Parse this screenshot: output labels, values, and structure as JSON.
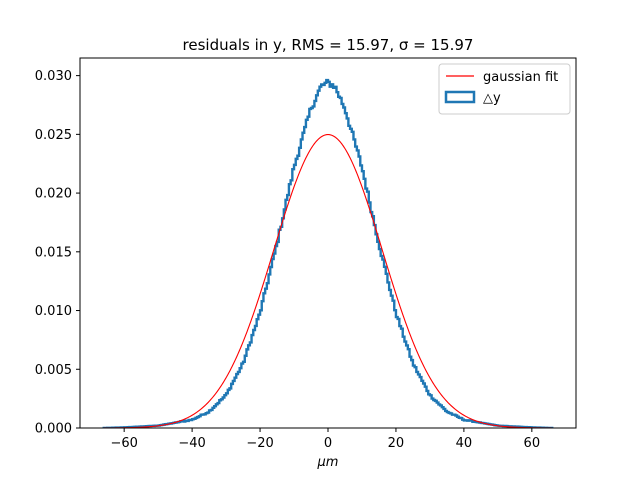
{
  "chart_data": {
    "type": "histogram",
    "title": "residuals in y, RMS = 15.97, σ = 15.97",
    "xlabel": "μm",
    "ylabel": "",
    "xlim": [
      -73,
      73
    ],
    "ylim": [
      0,
      0.0315
    ],
    "xticks": [
      -60,
      -40,
      -20,
      0,
      20,
      40,
      60
    ],
    "xtick_labels": [
      "−60",
      "−40",
      "−20",
      "0",
      "20",
      "40",
      "60"
    ],
    "yticks": [
      0.0,
      0.005,
      0.01,
      0.015,
      0.02,
      0.025,
      0.03
    ],
    "ytick_labels": [
      "0.000",
      "0.005",
      "0.010",
      "0.015",
      "0.020",
      "0.025",
      "0.030"
    ],
    "grid": false,
    "legend_position": "top-right",
    "series": [
      {
        "name": "gaussian fit",
        "kind": "line",
        "color": "#ff0000",
        "mean": 0,
        "sigma": 15.97,
        "x_range": [
          -66,
          66
        ]
      },
      {
        "name": "△y",
        "kind": "step-histogram",
        "color": "#1f77b4",
        "bin_width": 0.5,
        "x_range": [
          -66,
          66
        ],
        "profile": {
          "x": [
            -66,
            -60,
            -50,
            -40,
            -35,
            -30,
            -25,
            -20,
            -15,
            -10,
            -5,
            -2,
            0,
            2,
            5,
            10,
            15,
            20,
            25,
            30,
            35,
            40,
            50,
            60,
            66
          ],
          "y": [
            0.0,
            5e-05,
            0.0002,
            0.0007,
            0.0014,
            0.0028,
            0.0055,
            0.0098,
            0.0157,
            0.0222,
            0.0272,
            0.0291,
            0.0294,
            0.0291,
            0.0272,
            0.0222,
            0.0157,
            0.0098,
            0.0055,
            0.0028,
            0.0014,
            0.0007,
            0.0002,
            5e-05,
            0.0
          ]
        }
      }
    ]
  }
}
